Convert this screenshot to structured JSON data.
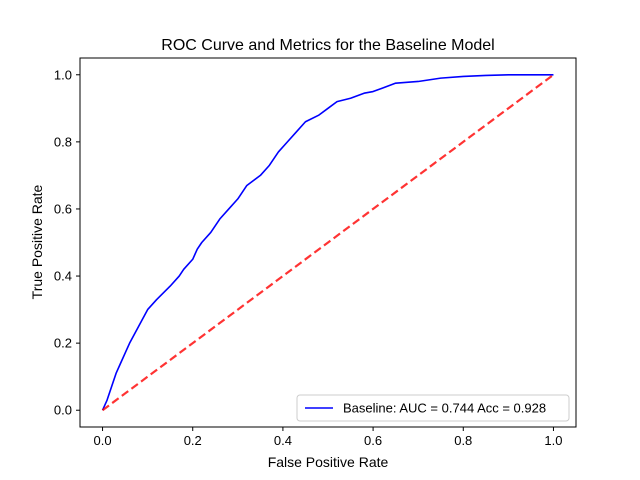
{
  "chart_data": {
    "type": "line",
    "title": "ROC Curve and Metrics for the Baseline Model",
    "xlabel": "False Positive Rate",
    "ylabel": "True Positive Rate",
    "xlim": [
      -0.05,
      1.05
    ],
    "ylim": [
      -0.05,
      1.05
    ],
    "x_ticks": [
      0.0,
      0.2,
      0.4,
      0.6,
      0.8,
      1.0
    ],
    "y_ticks": [
      0.0,
      0.2,
      0.4,
      0.6,
      0.8,
      1.0
    ],
    "x_tick_labels": [
      "0.0",
      "0.2",
      "0.4",
      "0.6",
      "0.8",
      "1.0"
    ],
    "y_tick_labels": [
      "0.0",
      "0.2",
      "0.4",
      "0.6",
      "0.8",
      "1.0"
    ],
    "grid": false,
    "legend_position": "lower-right",
    "series": [
      {
        "name": "Baseline: AUC = 0.744 Acc = 0.928",
        "color": "#0000ff",
        "style": "solid",
        "x": [
          0.0,
          0.01,
          0.02,
          0.03,
          0.04,
          0.05,
          0.06,
          0.08,
          0.1,
          0.12,
          0.15,
          0.17,
          0.18,
          0.2,
          0.21,
          0.22,
          0.24,
          0.26,
          0.28,
          0.3,
          0.32,
          0.35,
          0.37,
          0.39,
          0.41,
          0.43,
          0.45,
          0.48,
          0.5,
          0.52,
          0.55,
          0.58,
          0.6,
          0.62,
          0.65,
          0.7,
          0.75,
          0.8,
          0.85,
          0.9,
          1.0
        ],
        "y": [
          0.0,
          0.03,
          0.07,
          0.11,
          0.14,
          0.17,
          0.2,
          0.25,
          0.3,
          0.33,
          0.37,
          0.4,
          0.42,
          0.45,
          0.48,
          0.5,
          0.53,
          0.57,
          0.6,
          0.63,
          0.67,
          0.7,
          0.73,
          0.77,
          0.8,
          0.83,
          0.86,
          0.88,
          0.9,
          0.92,
          0.93,
          0.945,
          0.95,
          0.96,
          0.975,
          0.98,
          0.99,
          0.995,
          0.998,
          1.0,
          1.0
        ]
      },
      {
        "name": "",
        "color": "#ff0000",
        "style": "dashed",
        "x": [
          0.0,
          1.0
        ],
        "y": [
          0.0,
          1.0
        ]
      }
    ]
  }
}
